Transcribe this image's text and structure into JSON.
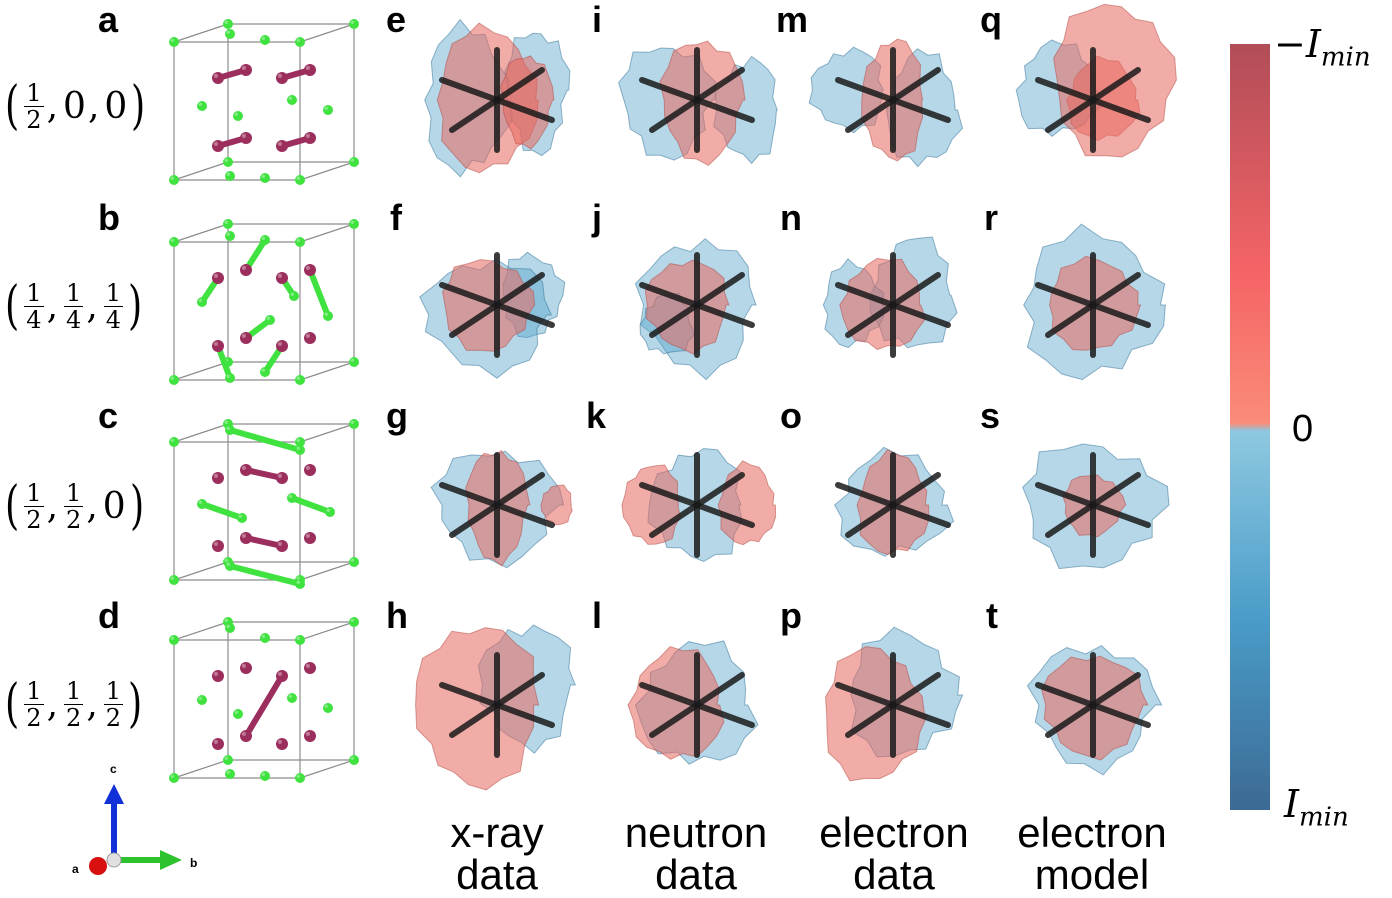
{
  "panels": [
    "a",
    "b",
    "c",
    "d",
    "e",
    "f",
    "g",
    "h",
    "i",
    "j",
    "k",
    "l",
    "m",
    "n",
    "o",
    "p",
    "q",
    "r",
    "s",
    "t"
  ],
  "vectors": [
    {
      "open": "(",
      "items": [
        {
          "num": "1",
          "den": "2"
        },
        "0",
        "0"
      ],
      "close": ")"
    },
    {
      "open": "(",
      "items": [
        {
          "num": "1",
          "den": "4"
        },
        {
          "num": "1",
          "den": "4"
        },
        {
          "num": "1",
          "den": "4"
        }
      ],
      "close": ")"
    },
    {
      "open": "(",
      "items": [
        {
          "num": "1",
          "den": "2"
        },
        {
          "num": "1",
          "den": "2"
        },
        "0"
      ],
      "close": ")"
    },
    {
      "open": "(",
      "items": [
        {
          "num": "1",
          "den": "2"
        },
        {
          "num": "1",
          "den": "2"
        },
        {
          "num": "1",
          "den": "2"
        }
      ],
      "close": ")"
    }
  ],
  "columns": [
    {
      "line1": "x-ray",
      "line2": "data"
    },
    {
      "line1": "neutron",
      "line2": "data"
    },
    {
      "line1": "electron",
      "line2": "data"
    },
    {
      "line1": "electron",
      "line2": "model"
    }
  ],
  "colorbar": {
    "top_label": "−I",
    "top_sub": "min",
    "mid_label": "0",
    "bottom_label": "I",
    "bottom_sub": "min",
    "colors": {
      "top": "#b14d58",
      "upper_mid": "#f56466",
      "zero_high": "#fa8c78",
      "zero_low": "#8ec8e0",
      "lower_mid": "#4a9cc9",
      "bottom": "#3c6a94"
    }
  },
  "axes": {
    "c": "c",
    "a": "a",
    "b": "b"
  },
  "colors": {
    "atom_purple": "#9c2e5e",
    "atom_green": "#3fe23f",
    "iso_red": "#e8685e",
    "iso_blue": "#5aa6cc",
    "cross": "#1a1a1a"
  }
}
